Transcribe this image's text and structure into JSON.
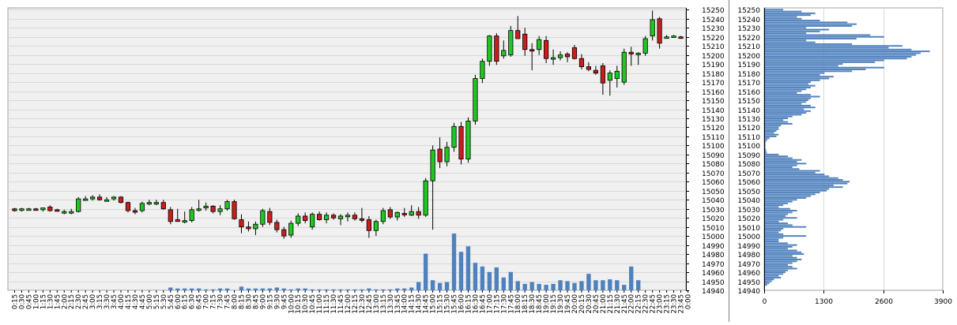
{
  "chart_data": [
    {
      "type": "candlestick",
      "y_ticks": [
        15250,
        15240,
        15230,
        15220,
        15210,
        15200,
        15190,
        15180,
        15170,
        15160,
        15150,
        15140,
        15130,
        15120,
        15110,
        15100,
        15090,
        15080,
        15070,
        15060,
        15050,
        15040,
        15030,
        15020,
        15010,
        15000,
        14990,
        14980,
        14970,
        14960,
        14950,
        14940
      ],
      "ylim": [
        14940,
        15252
      ],
      "x_ticks": [
        "0:15",
        "0:30",
        "0:45",
        "1:00",
        "1:15",
        "1:30",
        "1:45",
        "2:00",
        "2:15",
        "2:30",
        "2:45",
        "3:00",
        "3:15",
        "3:30",
        "3:45",
        "4:00",
        "4:15",
        "4:30",
        "4:45",
        "5:00",
        "5:15",
        "5:30",
        "5:45",
        "6:00",
        "6:15",
        "6:30",
        "6:45",
        "7:00",
        "7:15",
        "7:30",
        "7:45",
        "8:00",
        "8:15",
        "8:30",
        "8:45",
        "9:00",
        "9:15",
        "9:30",
        "9:45",
        "10:00",
        "10:15",
        "10:30",
        "10:45",
        "11:00",
        "11:15",
        "11:30",
        "11:45",
        "12:00",
        "12:15",
        "12:30",
        "12:45",
        "13:00",
        "13:15",
        "13:30",
        "13:45",
        "14:00",
        "14:15",
        "14:30",
        "14:45",
        "15:00",
        "15:15",
        "15:30",
        "15:45",
        "16:00",
        "16:15",
        "16:30",
        "16:45",
        "17:00",
        "17:15",
        "17:30",
        "17:45",
        "18:00",
        "18:15",
        "18:30",
        "18:45",
        "19:00",
        "19:15",
        "19:30",
        "19:45",
        "20:00",
        "20:15",
        "20:30",
        "20:45",
        "21:00",
        "21:15",
        "21:30",
        "21:45",
        "22:00",
        "22:15",
        "22:30",
        "22:45",
        "23:00",
        "23:15",
        "23:30",
        "23:45",
        "0:00"
      ],
      "candles": [
        {
          "o": 15030,
          "h": 15031,
          "l": 15027,
          "c": 15028
        },
        {
          "o": 15029,
          "h": 15031,
          "l": 15027,
          "c": 15030
        },
        {
          "o": 15030,
          "h": 15031,
          "l": 15029,
          "c": 15030
        },
        {
          "o": 15030,
          "h": 15031,
          "l": 15029,
          "c": 15029
        },
        {
          "o": 15029,
          "h": 15031,
          "l": 15027,
          "c": 15031
        },
        {
          "o": 15032,
          "h": 15034,
          "l": 15027,
          "c": 15028
        },
        {
          "o": 15029,
          "h": 15030,
          "l": 15027,
          "c": 15028
        },
        {
          "o": 15027,
          "h": 15029,
          "l": 15024,
          "c": 15027
        },
        {
          "o": 15027,
          "h": 15030,
          "l": 15024,
          "c": 15027
        },
        {
          "o": 15027,
          "h": 15043,
          "l": 15026,
          "c": 15041
        },
        {
          "o": 15040,
          "h": 15044,
          "l": 15039,
          "c": 15041
        },
        {
          "o": 15041,
          "h": 15045,
          "l": 15039,
          "c": 15043
        },
        {
          "o": 15043,
          "h": 15046,
          "l": 15039,
          "c": 15040
        },
        {
          "o": 15040,
          "h": 15043,
          "l": 15038,
          "c": 15040
        },
        {
          "o": 15041,
          "h": 15044,
          "l": 15039,
          "c": 15043
        },
        {
          "o": 15043,
          "h": 15044,
          "l": 15036,
          "c": 15037
        },
        {
          "o": 15037,
          "h": 15038,
          "l": 15026,
          "c": 15028
        },
        {
          "o": 15028,
          "h": 15031,
          "l": 15024,
          "c": 15027
        },
        {
          "o": 15028,
          "h": 15038,
          "l": 15026,
          "c": 15036
        },
        {
          "o": 15036,
          "h": 15040,
          "l": 15034,
          "c": 15037
        },
        {
          "o": 15037,
          "h": 15040,
          "l": 15034,
          "c": 15037
        },
        {
          "o": 15037,
          "h": 15040,
          "l": 15029,
          "c": 15030
        },
        {
          "o": 15029,
          "h": 15032,
          "l": 15013,
          "c": 15016
        },
        {
          "o": 15018,
          "h": 15030,
          "l": 15016,
          "c": 15016
        },
        {
          "o": 15016,
          "h": 15027,
          "l": 15014,
          "c": 15017
        },
        {
          "o": 15017,
          "h": 15032,
          "l": 15015,
          "c": 15029
        },
        {
          "o": 15029,
          "h": 15040,
          "l": 15027,
          "c": 15030
        },
        {
          "o": 15031,
          "h": 15037,
          "l": 15028,
          "c": 15033
        },
        {
          "o": 15033,
          "h": 15034,
          "l": 15025,
          "c": 15027
        },
        {
          "o": 15027,
          "h": 15034,
          "l": 15023,
          "c": 15030
        },
        {
          "o": 15030,
          "h": 15040,
          "l": 15028,
          "c": 15038
        },
        {
          "o": 15038,
          "h": 15040,
          "l": 15018,
          "c": 15019
        },
        {
          "o": 15018,
          "h": 15024,
          "l": 15003,
          "c": 15010
        },
        {
          "o": 15010,
          "h": 15016,
          "l": 15005,
          "c": 15008
        },
        {
          "o": 15008,
          "h": 15016,
          "l": 15001,
          "c": 15013
        },
        {
          "o": 15013,
          "h": 15030,
          "l": 15010,
          "c": 15028
        },
        {
          "o": 15027,
          "h": 15031,
          "l": 15012,
          "c": 15015
        },
        {
          "o": 15015,
          "h": 15018,
          "l": 15004,
          "c": 15007
        },
        {
          "o": 15007,
          "h": 15010,
          "l": 14997,
          "c": 15000
        },
        {
          "o": 15001,
          "h": 15017,
          "l": 14998,
          "c": 15014
        },
        {
          "o": 15014,
          "h": 15025,
          "l": 15011,
          "c": 15022
        },
        {
          "o": 15022,
          "h": 15026,
          "l": 15014,
          "c": 15017
        },
        {
          "o": 15010,
          "h": 15026,
          "l": 15007,
          "c": 15024
        },
        {
          "o": 15024,
          "h": 15027,
          "l": 15017,
          "c": 15018
        },
        {
          "o": 15018,
          "h": 15026,
          "l": 15014,
          "c": 15023
        },
        {
          "o": 15023,
          "h": 15025,
          "l": 15018,
          "c": 15020
        },
        {
          "o": 15019,
          "h": 15024,
          "l": 15012,
          "c": 15022
        },
        {
          "o": 15022,
          "h": 15026,
          "l": 15016,
          "c": 15023
        },
        {
          "o": 15023,
          "h": 15026,
          "l": 15017,
          "c": 15019
        },
        {
          "o": 15019,
          "h": 15031,
          "l": 15015,
          "c": 15018
        },
        {
          "o": 15018,
          "h": 15022,
          "l": 14998,
          "c": 15006
        },
        {
          "o": 15006,
          "h": 15018,
          "l": 15000,
          "c": 15016
        },
        {
          "o": 15016,
          "h": 15031,
          "l": 15013,
          "c": 15028
        },
        {
          "o": 15029,
          "h": 15032,
          "l": 15019,
          "c": 15021
        },
        {
          "o": 15021,
          "h": 15027,
          "l": 15017,
          "c": 15026
        },
        {
          "o": 15025,
          "h": 15031,
          "l": 15021,
          "c": 15024
        },
        {
          "o": 15023,
          "h": 15034,
          "l": 15022,
          "c": 15027
        },
        {
          "o": 15027,
          "h": 15032,
          "l": 15019,
          "c": 15023
        },
        {
          "o": 15023,
          "h": 15064,
          "l": 15021,
          "c": 15061
        },
        {
          "o": 15061,
          "h": 15100,
          "l": 15007,
          "c": 15095
        },
        {
          "o": 15096,
          "h": 15109,
          "l": 15075,
          "c": 15082
        },
        {
          "o": 15082,
          "h": 15104,
          "l": 15077,
          "c": 15098
        },
        {
          "o": 15098,
          "h": 15125,
          "l": 15093,
          "c": 15121
        },
        {
          "o": 15121,
          "h": 15126,
          "l": 15079,
          "c": 15085
        },
        {
          "o": 15085,
          "h": 15131,
          "l": 15081,
          "c": 15127
        },
        {
          "o": 15127,
          "h": 15178,
          "l": 15123,
          "c": 15174
        },
        {
          "o": 15174,
          "h": 15196,
          "l": 15169,
          "c": 15193
        },
        {
          "o": 15193,
          "h": 15222,
          "l": 15188,
          "c": 15221
        },
        {
          "o": 15221,
          "h": 15224,
          "l": 15189,
          "c": 15193
        },
        {
          "o": 15199,
          "h": 15216,
          "l": 15196,
          "c": 15205
        },
        {
          "o": 15200,
          "h": 15232,
          "l": 15198,
          "c": 15227
        },
        {
          "o": 15227,
          "h": 15243,
          "l": 15221,
          "c": 15218
        },
        {
          "o": 15223,
          "h": 15230,
          "l": 15199,
          "c": 15206
        },
        {
          "o": 15206,
          "h": 15213,
          "l": 15183,
          "c": 15205
        },
        {
          "o": 15206,
          "h": 15221,
          "l": 15200,
          "c": 15217
        },
        {
          "o": 15216,
          "h": 15221,
          "l": 15191,
          "c": 15196
        },
        {
          "o": 15196,
          "h": 15206,
          "l": 15189,
          "c": 15197
        },
        {
          "o": 15197,
          "h": 15204,
          "l": 15194,
          "c": 15200
        },
        {
          "o": 15201,
          "h": 15203,
          "l": 15192,
          "c": 15198
        },
        {
          "o": 15208,
          "h": 15211,
          "l": 15195,
          "c": 15196
        },
        {
          "o": 15196,
          "h": 15201,
          "l": 15184,
          "c": 15187
        },
        {
          "o": 15187,
          "h": 15192,
          "l": 15182,
          "c": 15184
        },
        {
          "o": 15183,
          "h": 15188,
          "l": 15178,
          "c": 15180
        },
        {
          "o": 15188,
          "h": 15191,
          "l": 15156,
          "c": 15169
        },
        {
          "o": 15172,
          "h": 15183,
          "l": 15155,
          "c": 15180
        },
        {
          "o": 15174,
          "h": 15188,
          "l": 15164,
          "c": 15182
        },
        {
          "o": 15170,
          "h": 15207,
          "l": 15167,
          "c": 15203
        },
        {
          "o": 15203,
          "h": 15209,
          "l": 15188,
          "c": 15201
        },
        {
          "o": 15201,
          "h": 15203,
          "l": 15189,
          "c": 15202
        },
        {
          "o": 15202,
          "h": 15221,
          "l": 15199,
          "c": 15218
        },
        {
          "o": 15221,
          "h": 15249,
          "l": 15216,
          "c": 15239
        },
        {
          "o": 15240,
          "h": 15242,
          "l": 15207,
          "c": 15213
        },
        {
          "o": 15220,
          "h": 15222,
          "l": 15219,
          "c": 15220
        },
        {
          "o": 15220,
          "h": 15222,
          "l": 15219,
          "c": 15221
        },
        {
          "o": 15220,
          "h": 15221,
          "l": 15218,
          "c": 15219
        }
      ],
      "volume": [
        0,
        0,
        0,
        0,
        0,
        0,
        0,
        0,
        0,
        0,
        0,
        0,
        0,
        0,
        0,
        0,
        0,
        0,
        0,
        0,
        0,
        0,
        3,
        2,
        2,
        2,
        2,
        1,
        1,
        2,
        2,
        0,
        4,
        2,
        2,
        2,
        2,
        3,
        2,
        1,
        2,
        2,
        1,
        1,
        1,
        1,
        1,
        1,
        1,
        1,
        2,
        1,
        1,
        1,
        2,
        2,
        3,
        9,
        40,
        11,
        8,
        9,
        62,
        42,
        48,
        30,
        26,
        20,
        25,
        14,
        20,
        10,
        7,
        9,
        7,
        6,
        7,
        11,
        10,
        8,
        10,
        18,
        11,
        11,
        12,
        11,
        6,
        26,
        11,
        0,
        0,
        0,
        0,
        0,
        0,
        0
      ],
      "volume_max": 62
    },
    {
      "type": "bar",
      "orientation": "horizontal",
      "x_ticks": [
        0,
        1300,
        2600,
        3900
      ],
      "xlim": [
        0,
        3900
      ],
      "levels_top": 15250,
      "levels_step": 2,
      "values": [
        400,
        800,
        1100,
        1000,
        700,
        800,
        1200,
        1800,
        2000,
        1900,
        900,
        1400,
        1200,
        900,
        2300,
        2600,
        2000,
        900,
        1100,
        1900,
        3000,
        2700,
        3200,
        3600,
        3400,
        3300,
        3200,
        3100,
        2600,
        2400,
        1700,
        1600,
        2600,
        2200,
        1900,
        1300,
        1200,
        1500,
        1400,
        1200,
        1000,
        950,
        1100,
        1000,
        900,
        800,
        700,
        1000,
        1200,
        1000,
        950,
        900,
        800,
        1000,
        1100,
        850,
        1000,
        900,
        800,
        600,
        500,
        400,
        500,
        600,
        350,
        300,
        300,
        250,
        200,
        300,
        250,
        100,
        50,
        20,
        10,
        15,
        10,
        20,
        30,
        40,
        300,
        500,
        600,
        800,
        700,
        900,
        700,
        600,
        750,
        1200,
        1100,
        1300,
        1400,
        1600,
        1700,
        1850,
        1800,
        1500,
        1700,
        1400,
        1350,
        1200,
        1100,
        1000,
        900,
        700,
        600,
        500,
        400,
        300,
        550,
        700,
        600,
        500,
        450,
        700,
        400,
        300,
        500,
        600,
        900,
        400,
        350,
        300,
        400,
        900,
        400,
        300,
        300,
        500,
        700,
        600,
        500,
        700,
        800,
        850,
        600,
        700,
        800,
        700,
        600,
        500,
        600,
        700,
        500,
        450,
        400,
        300,
        350,
        200,
        150,
        100,
        50
      ]
    }
  ]
}
